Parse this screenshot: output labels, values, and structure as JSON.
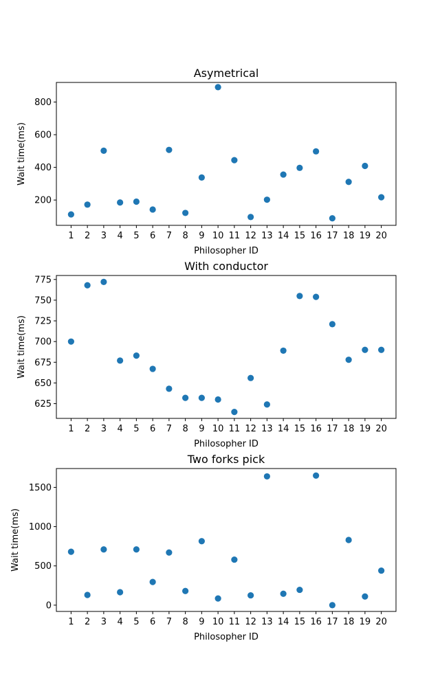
{
  "chart_data": [
    {
      "type": "scatter",
      "title": "Asymetrical",
      "xlabel": "Philosopher ID",
      "ylabel": "Wait time(ms)",
      "color": "#1f77b4",
      "x": [
        1,
        2,
        3,
        4,
        5,
        6,
        7,
        8,
        9,
        10,
        11,
        12,
        13,
        14,
        15,
        16,
        17,
        18,
        19,
        20
      ],
      "y": [
        112,
        172,
        502,
        185,
        190,
        142,
        507,
        121,
        338,
        891,
        444,
        96,
        202,
        356,
        397,
        498,
        88,
        311,
        409,
        217
      ],
      "ylim": [
        45,
        920
      ],
      "yticks": [
        200,
        400,
        600,
        800
      ]
    },
    {
      "type": "scatter",
      "title": "With conductor",
      "xlabel": "Philosopher ID",
      "ylabel": "Wait time(ms)",
      "color": "#1f77b4",
      "x": [
        1,
        2,
        3,
        4,
        5,
        6,
        7,
        8,
        9,
        10,
        11,
        12,
        13,
        14,
        15,
        16,
        17,
        18,
        19,
        20
      ],
      "y": [
        700,
        768,
        772,
        677,
        683,
        667,
        643,
        632,
        632,
        630,
        615,
        656,
        624,
        689,
        755,
        754,
        721,
        678,
        690,
        690
      ],
      "ylim": [
        607.2,
        779.8
      ],
      "yticks": [
        625,
        650,
        675,
        700,
        725,
        750,
        775
      ]
    },
    {
      "type": "scatter",
      "title": "Two forks pick",
      "xlabel": "Philosopher ID",
      "ylabel": "Wait time(ms)",
      "color": "#1f77b4",
      "x": [
        1,
        2,
        3,
        4,
        5,
        6,
        7,
        8,
        9,
        10,
        11,
        12,
        13,
        14,
        15,
        16,
        17,
        18,
        19,
        20
      ],
      "y": [
        680,
        130,
        710,
        165,
        710,
        295,
        670,
        180,
        815,
        85,
        580,
        125,
        1640,
        145,
        195,
        1650,
        0,
        830,
        110,
        440
      ],
      "ylim": [
        -80,
        1740
      ],
      "yticks": [
        0,
        500,
        1000,
        1500
      ]
    }
  ]
}
